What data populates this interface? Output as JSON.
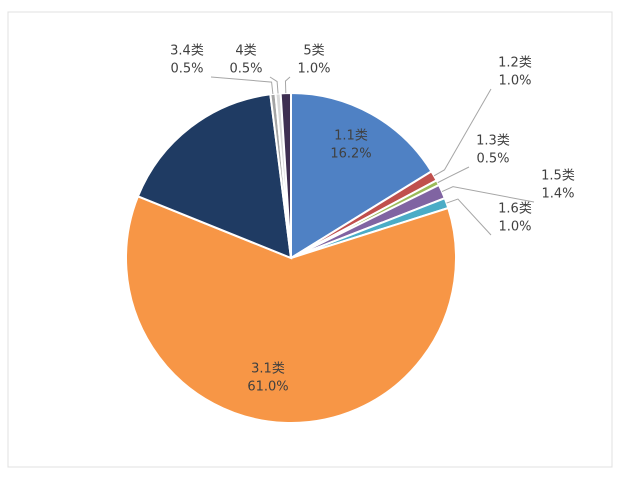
{
  "chart_data": {
    "type": "pie",
    "categories": [
      "1.1类",
      "1.2类",
      "1.3类",
      "1.5类",
      "1.6类",
      "3.1类",
      null,
      "3.4类",
      "4类",
      "5类"
    ],
    "values": [
      16.2,
      1.0,
      0.5,
      1.4,
      1.0,
      61.0,
      16.9,
      0.5,
      0.5,
      1.0
    ],
    "value_labels": [
      "16.2%",
      "1.0%",
      "0.5%",
      "1.4%",
      "1.0%",
      "61.0%",
      null,
      "0.5%",
      "0.5%",
      "1.0%"
    ],
    "colors": [
      "#4f81c4",
      "#c0504d",
      "#9bbb59",
      "#8064a2",
      "#4bacc6",
      "#f79646",
      "#1f3b63",
      "#a5a5a5",
      "#d9d9d9",
      "#3e2f52"
    ]
  }
}
